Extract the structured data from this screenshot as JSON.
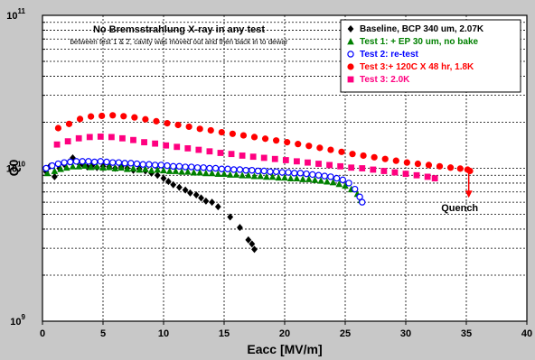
{
  "chart_data": {
    "type": "scatter",
    "title": "No Bremsstrahlung X-ray in any test",
    "subtitle": "between test 1 & 2, cavity was moved out and then back in to dewar",
    "xlabel": "Eacc [MV/m]",
    "ylabel": "Q0",
    "x_range": [
      0,
      40
    ],
    "y_range": [
      1000000000,
      100000000000
    ],
    "y_scale": "log",
    "x_ticks": [
      "0",
      "5",
      "10",
      "15",
      "20",
      "25",
      "30",
      "35",
      "40"
    ],
    "y_ticks": [
      {
        "base": "10",
        "exp": "9"
      },
      {
        "base": "10",
        "exp": "10"
      },
      {
        "base": "10",
        "exp": "11"
      }
    ],
    "grid": true,
    "legend_position": "top-right",
    "annotation": {
      "text": "Quench",
      "x": 35.2,
      "y_from": 9800000000,
      "y_to": 6500000000
    },
    "series": [
      {
        "name": "Baseline, BCP 340 um, 2.07K",
        "color": "#000000",
        "marker": "diamond",
        "points": [
          [
            0.3,
            9500000000
          ],
          [
            0.6,
            10300000000
          ],
          [
            1,
            8800000000
          ],
          [
            1.4,
            10000000000
          ],
          [
            1.8,
            10600000000
          ],
          [
            2.2,
            11000000000
          ],
          [
            2.5,
            11700000000
          ],
          [
            2.9,
            11000000000
          ],
          [
            3.3,
            10600000000
          ],
          [
            3.7,
            10200000000
          ],
          [
            4.1,
            10400000000
          ],
          [
            4.5,
            10100000000
          ],
          [
            5,
            10300000000
          ],
          [
            5.5,
            10200000000
          ],
          [
            6,
            10000000000
          ],
          [
            6.5,
            10200000000
          ],
          [
            7,
            10000000000
          ],
          [
            7.5,
            9700000000
          ],
          [
            8,
            9900000000
          ],
          [
            8.5,
            9600000000
          ],
          [
            9,
            9300000000
          ],
          [
            9.5,
            9000000000
          ],
          [
            10,
            8600000000
          ],
          [
            10.4,
            8200000000
          ],
          [
            10.8,
            7800000000
          ],
          [
            11.3,
            7500000000
          ],
          [
            11.8,
            7200000000
          ],
          [
            12.2,
            6900000000
          ],
          [
            12.7,
            6700000000
          ],
          [
            13.1,
            6400000000
          ],
          [
            13.5,
            6100000000
          ],
          [
            14,
            6000000000
          ],
          [
            14.5,
            5600000000
          ],
          [
            15.5,
            4800000000
          ],
          [
            16.3,
            4100000000
          ],
          [
            17,
            3400000000
          ],
          [
            17.3,
            3200000000
          ],
          [
            17.5,
            2950000000
          ]
        ]
      },
      {
        "name": "Test 1: + EP 30 um, no bake",
        "color": "#008000",
        "marker": "triangle",
        "points": [
          [
            0.4,
            9300000000
          ],
          [
            1,
            9600000000
          ],
          [
            1.5,
            9900000000
          ],
          [
            2,
            10100000000
          ],
          [
            2.5,
            10300000000
          ],
          [
            3,
            10300000000
          ],
          [
            3.5,
            10400000000
          ],
          [
            4,
            10200000000
          ],
          [
            4.5,
            10300000000
          ],
          [
            5,
            10100000000
          ],
          [
            5.5,
            10200000000
          ],
          [
            6,
            10000000000
          ],
          [
            6.5,
            10100000000
          ],
          [
            7,
            9900000000
          ],
          [
            7.5,
            10000000000
          ],
          [
            8,
            9800000000
          ],
          [
            8.5,
            9900000000
          ],
          [
            9,
            9700000000
          ],
          [
            9.5,
            9800000000
          ],
          [
            10,
            9700000000
          ],
          [
            10.5,
            9600000000
          ],
          [
            11,
            9600000000
          ],
          [
            11.5,
            9500000000
          ],
          [
            12,
            9500000000
          ],
          [
            12.5,
            9400000000
          ],
          [
            13,
            9400000000
          ],
          [
            13.5,
            9300000000
          ],
          [
            14,
            9300000000
          ],
          [
            14.5,
            9200000000
          ],
          [
            15,
            9200000000
          ],
          [
            15.5,
            9100000000
          ],
          [
            16,
            9100000000
          ],
          [
            16.5,
            9000000000
          ],
          [
            17,
            9000000000
          ],
          [
            17.5,
            8900000000
          ],
          [
            18,
            8900000000
          ],
          [
            18.5,
            8800000000
          ],
          [
            19,
            8800000000
          ],
          [
            19.5,
            8700000000
          ],
          [
            20,
            8700000000
          ],
          [
            20.5,
            8600000000
          ],
          [
            21,
            8600000000
          ],
          [
            21.5,
            8500000000
          ],
          [
            22,
            8500000000
          ],
          [
            22.5,
            8400000000
          ],
          [
            23,
            8300000000
          ],
          [
            23.5,
            8200000000
          ],
          [
            24,
            8100000000
          ],
          [
            24.5,
            7900000000
          ],
          [
            25,
            7700000000
          ],
          [
            25.5,
            7300000000
          ],
          [
            26,
            6800000000
          ],
          [
            26.3,
            6200000000
          ]
        ]
      },
      {
        "name": "Test 2: re-test",
        "color": "#0000ff",
        "marker": "circle-open",
        "points": [
          [
            0.3,
            10000000000
          ],
          [
            0.8,
            10400000000
          ],
          [
            1.3,
            10700000000
          ],
          [
            1.8,
            10900000000
          ],
          [
            2.3,
            11000000000
          ],
          [
            2.8,
            11100000000
          ],
          [
            3.3,
            11100000000
          ],
          [
            3.8,
            11100000000
          ],
          [
            4.3,
            11000000000
          ],
          [
            4.8,
            11100000000
          ],
          [
            5.3,
            11000000000
          ],
          [
            5.8,
            10900000000
          ],
          [
            6.3,
            10900000000
          ],
          [
            6.8,
            10800000000
          ],
          [
            7.3,
            10800000000
          ],
          [
            7.8,
            10700000000
          ],
          [
            8.3,
            10600000000
          ],
          [
            8.8,
            10600000000
          ],
          [
            9.3,
            10500000000
          ],
          [
            9.8,
            10500000000
          ],
          [
            10.3,
            10400000000
          ],
          [
            10.8,
            10300000000
          ],
          [
            11.3,
            10300000000
          ],
          [
            11.8,
            10200000000
          ],
          [
            12.3,
            10200000000
          ],
          [
            12.8,
            10100000000
          ],
          [
            13.3,
            10100000000
          ],
          [
            13.8,
            10000000000
          ],
          [
            14.3,
            10000000000
          ],
          [
            14.8,
            9900000000
          ],
          [
            15.3,
            9900000000
          ],
          [
            15.8,
            9800000000
          ],
          [
            16.3,
            9800000000
          ],
          [
            16.8,
            9700000000
          ],
          [
            17.3,
            9700000000
          ],
          [
            17.8,
            9600000000
          ],
          [
            18.3,
            9600000000
          ],
          [
            18.8,
            9500000000
          ],
          [
            19.3,
            9500000000
          ],
          [
            19.8,
            9400000000
          ],
          [
            20.3,
            9400000000
          ],
          [
            20.8,
            9300000000
          ],
          [
            21.3,
            9300000000
          ],
          [
            21.8,
            9200000000
          ],
          [
            22.3,
            9100000000
          ],
          [
            22.8,
            9000000000
          ],
          [
            23.3,
            8900000000
          ],
          [
            23.8,
            8800000000
          ],
          [
            24.3,
            8600000000
          ],
          [
            24.8,
            8400000000
          ],
          [
            25.3,
            8000000000
          ],
          [
            25.8,
            7300000000
          ],
          [
            26.2,
            6500000000
          ],
          [
            26.4,
            6000000000
          ]
        ]
      },
      {
        "name": "Test 3:+ 120C X 48 hr, 1.8K",
        "color": "#ff0000",
        "marker": "circle",
        "points": [
          [
            1.3,
            18300000000
          ],
          [
            2.2,
            19500000000
          ],
          [
            3.1,
            21000000000
          ],
          [
            4,
            21800000000
          ],
          [
            4.9,
            22000000000
          ],
          [
            5.8,
            22200000000
          ],
          [
            6.7,
            21900000000
          ],
          [
            7.6,
            21500000000
          ],
          [
            8.5,
            20900000000
          ],
          [
            9.4,
            20300000000
          ],
          [
            10.3,
            19700000000
          ],
          [
            11.2,
            19200000000
          ],
          [
            12.1,
            18700000000
          ],
          [
            13,
            18100000000
          ],
          [
            13.9,
            17700000000
          ],
          [
            14.8,
            17200000000
          ],
          [
            15.7,
            16800000000
          ],
          [
            16.6,
            16400000000
          ],
          [
            17.5,
            16000000000
          ],
          [
            18.4,
            15600000000
          ],
          [
            19.3,
            15200000000
          ],
          [
            20.2,
            14800000000
          ],
          [
            21.1,
            14400000000
          ],
          [
            22,
            14000000000
          ],
          [
            22.9,
            13600000000
          ],
          [
            23.8,
            13200000000
          ],
          [
            24.7,
            12800000000
          ],
          [
            25.6,
            12400000000
          ],
          [
            26.5,
            12100000000
          ],
          [
            27.4,
            11800000000
          ],
          [
            28.3,
            11500000000
          ],
          [
            29.2,
            11200000000
          ],
          [
            30.1,
            10900000000
          ],
          [
            31,
            10700000000
          ],
          [
            31.9,
            10500000000
          ],
          [
            32.8,
            10300000000
          ],
          [
            33.7,
            10100000000
          ],
          [
            34.5,
            9950000000
          ],
          [
            35.1,
            9800000000
          ],
          [
            35.3,
            9600000000
          ]
        ]
      },
      {
        "name": "Test 3: 2.0K",
        "color": "#ff0080",
        "marker": "square",
        "points": [
          [
            1.2,
            14300000000
          ],
          [
            2.1,
            15000000000
          ],
          [
            3,
            15700000000
          ],
          [
            3.9,
            16000000000
          ],
          [
            4.8,
            16100000000
          ],
          [
            5.7,
            16000000000
          ],
          [
            6.6,
            15700000000
          ],
          [
            7.5,
            15300000000
          ],
          [
            8.4,
            14800000000
          ],
          [
            9.3,
            14500000000
          ],
          [
            10.2,
            14100000000
          ],
          [
            11.1,
            13800000000
          ],
          [
            12,
            13500000000
          ],
          [
            12.9,
            13200000000
          ],
          [
            13.8,
            12900000000
          ],
          [
            14.7,
            12600000000
          ],
          [
            15.6,
            12400000000
          ],
          [
            16.5,
            12100000000
          ],
          [
            17.4,
            11900000000
          ],
          [
            18.3,
            11700000000
          ],
          [
            19.2,
            11500000000
          ],
          [
            20.1,
            11300000000
          ],
          [
            21,
            11100000000
          ],
          [
            21.9,
            10900000000
          ],
          [
            22.8,
            10700000000
          ],
          [
            23.7,
            10500000000
          ],
          [
            24.6,
            10300000000
          ],
          [
            25.5,
            10100000000
          ],
          [
            26.4,
            10000000000
          ],
          [
            27.3,
            9800000000
          ],
          [
            28.2,
            9600000000
          ],
          [
            29.1,
            9400000000
          ],
          [
            30,
            9200000000
          ],
          [
            30.9,
            9000000000
          ],
          [
            31.8,
            8800000000
          ],
          [
            32.4,
            8600000000
          ]
        ]
      }
    ]
  }
}
